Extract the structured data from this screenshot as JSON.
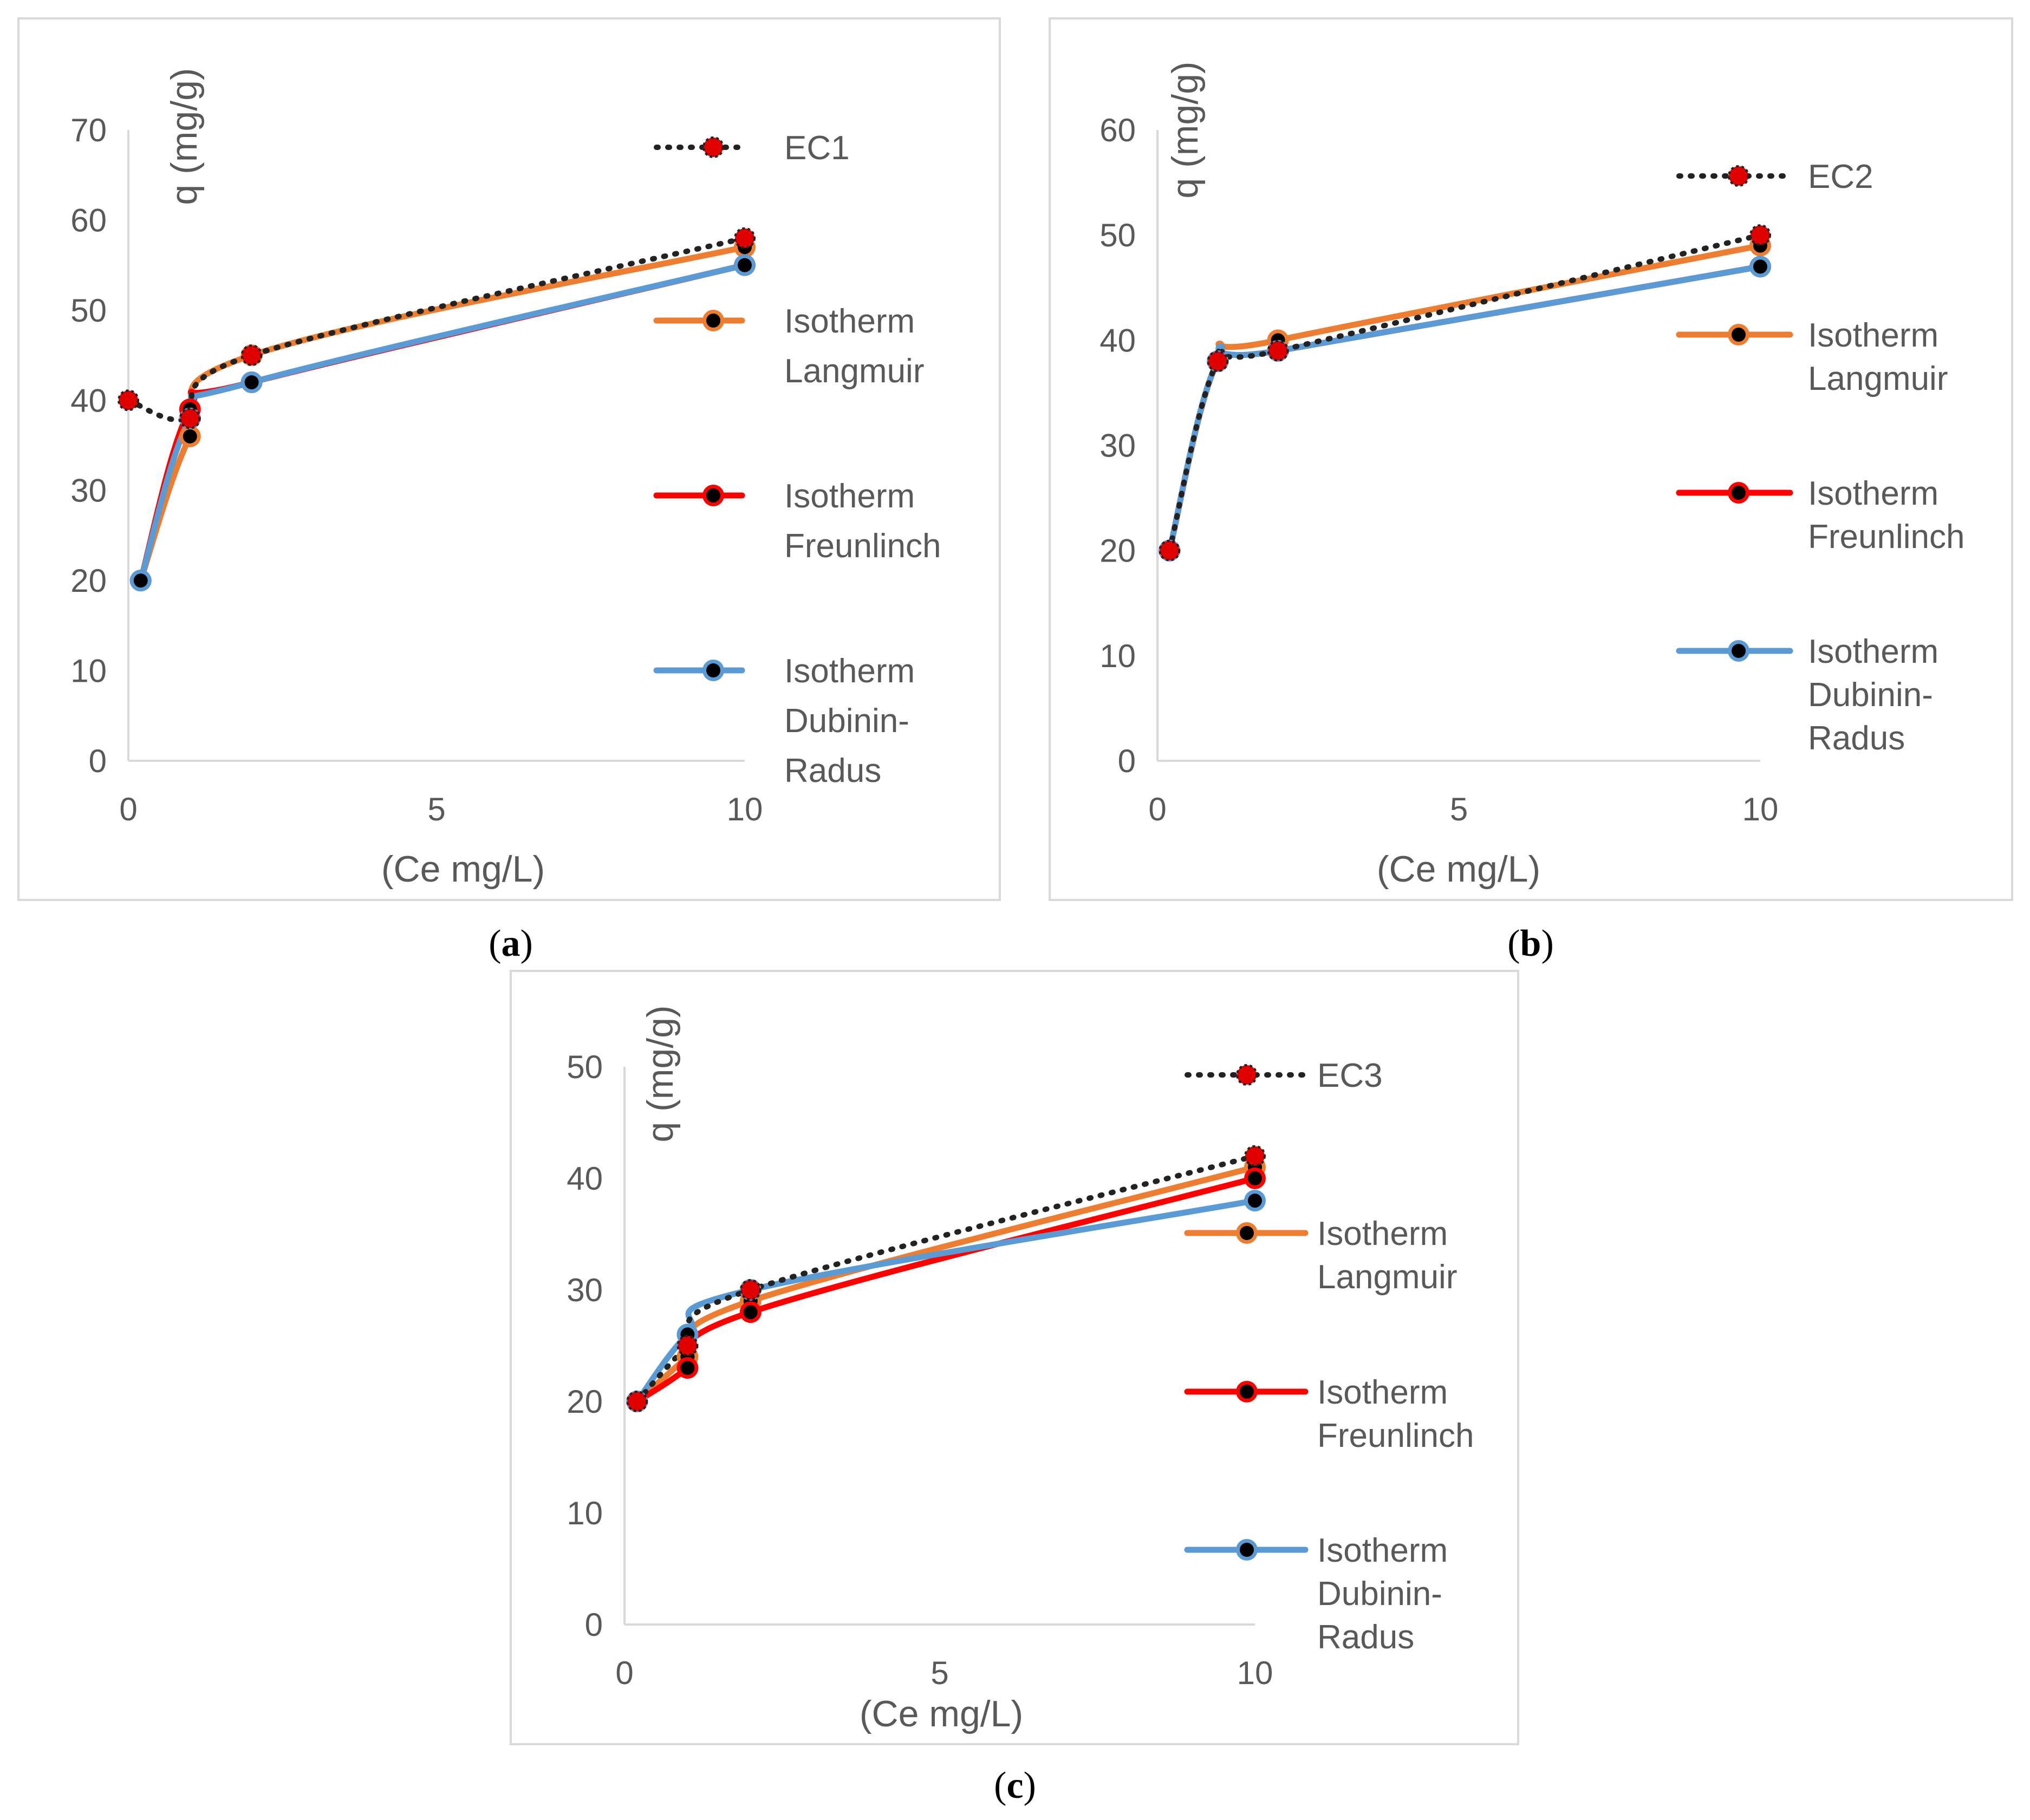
{
  "colors": {
    "frame": "#d9d9d9",
    "axis": "#d9d9d9",
    "text": "#595959",
    "experimental_line": "#222222",
    "experimental_marker": "#e00000",
    "langmuir": "#ed7d31",
    "freundlich": "#ff0000",
    "dubinin": "#5b9bd5",
    "marker_center": "#000000"
  },
  "chart_data": [
    {
      "type": "line",
      "panel_label": "a",
      "xlabel": "(Ce mg/L)",
      "ylabel": "q (mg/g)",
      "xlim": [
        0,
        10
      ],
      "ylim": [
        0,
        70
      ],
      "xticks": [
        0,
        5,
        10
      ],
      "yticks": [
        0,
        10,
        20,
        30,
        40,
        50,
        60,
        70
      ],
      "legend": "right",
      "series": [
        {
          "name": "EC1",
          "legend_lines": [
            "EC1"
          ],
          "kind": "experimental",
          "x": [
            0,
            1,
            2,
            10
          ],
          "y": [
            40,
            38,
            45,
            58
          ]
        },
        {
          "name": "Isotherm Langmuir",
          "legend_lines": [
            "Isotherm",
            "Langmuir"
          ],
          "kind": "langmuir",
          "x": [
            0.2,
            1,
            2,
            10
          ],
          "y": [
            20,
            36,
            45,
            57
          ]
        },
        {
          "name": "Isotherm Freunlinch",
          "legend_lines": [
            "Isotherm",
            "Freunlinch"
          ],
          "kind": "freundlich",
          "x": [
            0.2,
            1,
            2,
            10
          ],
          "y": [
            20,
            39,
            42,
            55
          ]
        },
        {
          "name": "Isotherm Dubinin-Radus",
          "legend_lines": [
            "Isotherm",
            "Dubinin-",
            "Radus"
          ],
          "kind": "dubinin",
          "x": [
            0.2,
            1,
            2,
            10
          ],
          "y": [
            20,
            38,
            42,
            55
          ]
        }
      ]
    },
    {
      "type": "line",
      "panel_label": "b",
      "xlabel": "(Ce mg/L)",
      "ylabel": "q (mg/g)",
      "xlim": [
        0,
        10
      ],
      "ylim": [
        0,
        60
      ],
      "xticks": [
        0,
        5,
        10
      ],
      "yticks": [
        0,
        10,
        20,
        30,
        40,
        50,
        60
      ],
      "legend": "right",
      "series": [
        {
          "name": "EC2",
          "legend_lines": [
            "EC2"
          ],
          "kind": "experimental",
          "x": [
            0.2,
            1,
            2,
            10
          ],
          "y": [
            20,
            38,
            39,
            50
          ]
        },
        {
          "name": "Isotherm Langmuir",
          "legend_lines": [
            "Isotherm",
            "Langmuir"
          ],
          "kind": "langmuir",
          "x": [
            0.2,
            1,
            2,
            10
          ],
          "y": [
            20,
            38,
            40,
            49
          ]
        },
        {
          "name": "Isotherm Freunlinch",
          "legend_lines": [
            "Isotherm",
            "Freunlinch"
          ],
          "kind": "freundlich",
          "x": [
            0.2,
            1,
            2,
            10
          ],
          "y": [
            20,
            38,
            39,
            47
          ]
        },
        {
          "name": "Isotherm Dubinin-Radus",
          "legend_lines": [
            "Isotherm",
            "Dubinin-",
            "Radus"
          ],
          "kind": "dubinin",
          "x": [
            0.2,
            1,
            2,
            10
          ],
          "y": [
            20,
            38,
            39,
            47
          ]
        }
      ]
    },
    {
      "type": "line",
      "panel_label": "c",
      "xlabel": "(Ce mg/L)",
      "ylabel": "q (mg/g)",
      "xlim": [
        0,
        10
      ],
      "ylim": [
        0,
        50
      ],
      "xticks": [
        0,
        5,
        10
      ],
      "yticks": [
        0,
        10,
        20,
        30,
        40,
        50
      ],
      "legend": "right",
      "series": [
        {
          "name": "EC3",
          "legend_lines": [
            "EC3"
          ],
          "kind": "experimental",
          "x": [
            0.2,
            1,
            2,
            10
          ],
          "y": [
            20,
            25,
            30,
            42
          ]
        },
        {
          "name": "Isotherm Langmuir",
          "legend_lines": [
            "Isotherm",
            "Langmuir"
          ],
          "kind": "langmuir",
          "x": [
            0.2,
            1,
            2,
            10
          ],
          "y": [
            20,
            24,
            29,
            41
          ]
        },
        {
          "name": "Isotherm Freunlinch",
          "legend_lines": [
            "Isotherm",
            "Freunlinch"
          ],
          "kind": "freundlich",
          "x": [
            0.2,
            1,
            2,
            10
          ],
          "y": [
            20,
            23,
            28,
            40
          ]
        },
        {
          "name": "Isotherm Dubinin-Radus",
          "legend_lines": [
            "Isotherm",
            "Dubinin-",
            "Radus"
          ],
          "kind": "dubinin",
          "x": [
            0.2,
            1,
            2,
            10
          ],
          "y": [
            20,
            26,
            30,
            38
          ]
        }
      ]
    }
  ]
}
